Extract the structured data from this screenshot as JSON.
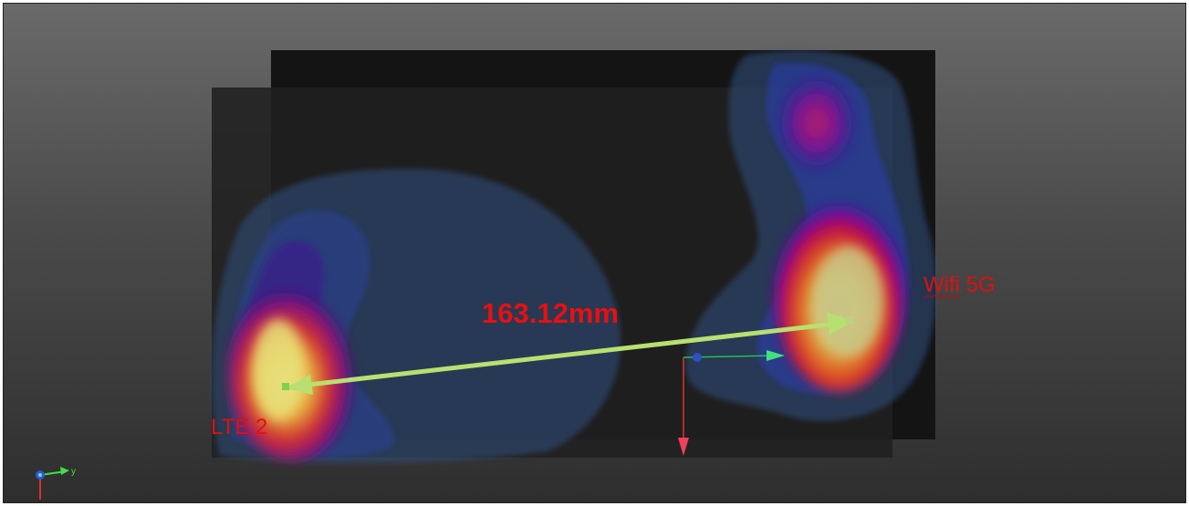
{
  "measurement": {
    "value_text": "163.12mm"
  },
  "antennas": {
    "lte": {
      "label": "LTE 2"
    },
    "wifi": {
      "label_word": "Wifi",
      "label_suffix": "5G"
    }
  },
  "axes": {
    "y_label": "y"
  },
  "colors": {
    "measure_line": "#b8e070",
    "label_red": "#e01010",
    "heat_low": "#2a4a8c",
    "heat_mid": "#5a10a0",
    "heat_high": "#d0103a",
    "heat_peak": "#f0e060",
    "gizmo_green": "#20c050",
    "gizmo_red": "#e03030"
  },
  "icons": {
    "triad": "axis-triad-icon",
    "gizmo": "transform-gizmo-icon"
  }
}
